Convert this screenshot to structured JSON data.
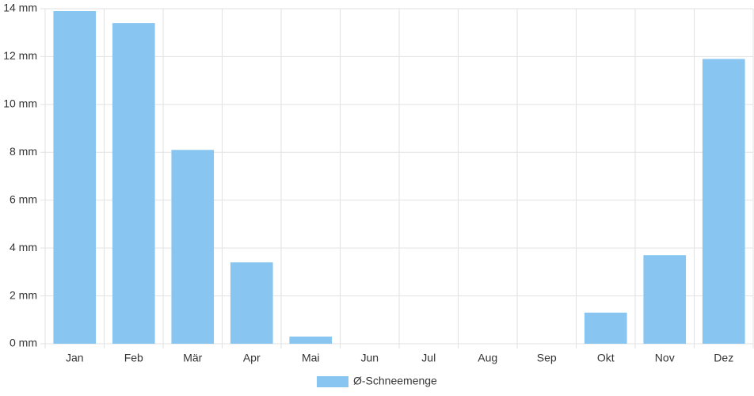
{
  "chart_data": {
    "type": "bar",
    "categories": [
      "Jan",
      "Feb",
      "Mär",
      "Apr",
      "Mai",
      "Jun",
      "Jul",
      "Aug",
      "Sep",
      "Okt",
      "Nov",
      "Dez"
    ],
    "series": [
      {
        "name": "Ø-Schneemenge",
        "color": "#88c6f1",
        "values": [
          13.9,
          13.4,
          8.1,
          3.4,
          0.3,
          0,
          0,
          0,
          0,
          1.3,
          3.7,
          11.9
        ]
      }
    ],
    "ylim": [
      0,
      14
    ],
    "yticks": [
      {
        "value": 0,
        "label": "0 mm"
      },
      {
        "value": 2,
        "label": "2 mm"
      },
      {
        "value": 4,
        "label": "4 mm"
      },
      {
        "value": 6,
        "label": "6 mm"
      },
      {
        "value": 8,
        "label": "8 mm"
      },
      {
        "value": 10,
        "label": "10 mm"
      },
      {
        "value": 12,
        "label": "12 mm"
      },
      {
        "value": 14,
        "label": "14 mm"
      }
    ],
    "grid": true,
    "legend": "bottom"
  }
}
